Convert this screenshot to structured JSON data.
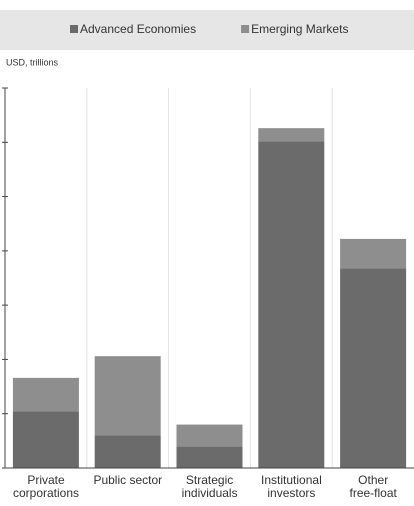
{
  "chart_data": {
    "type": "stacked_bar",
    "y_label": "USD, trillions",
    "categories": [
      "Private\ncorporations",
      "Public sector",
      "Strategic\nindividuals",
      "Institutional\ninvestors",
      "Other\nfree-float"
    ],
    "series": [
      {
        "name": "Advanced Economies",
        "color": "#6b6b6b",
        "values": [
          5.2,
          3.0,
          2.0,
          30.1,
          18.4
        ]
      },
      {
        "name": "Emerging Markets",
        "color": "#8e8e8e",
        "values": [
          3.1,
          7.3,
          2.0,
          1.2,
          2.7
        ]
      }
    ],
    "ylim": [
      0,
      35
    ],
    "yticks": [
      0,
      5,
      10,
      15,
      20,
      25,
      30,
      35
    ],
    "grid": true
  }
}
